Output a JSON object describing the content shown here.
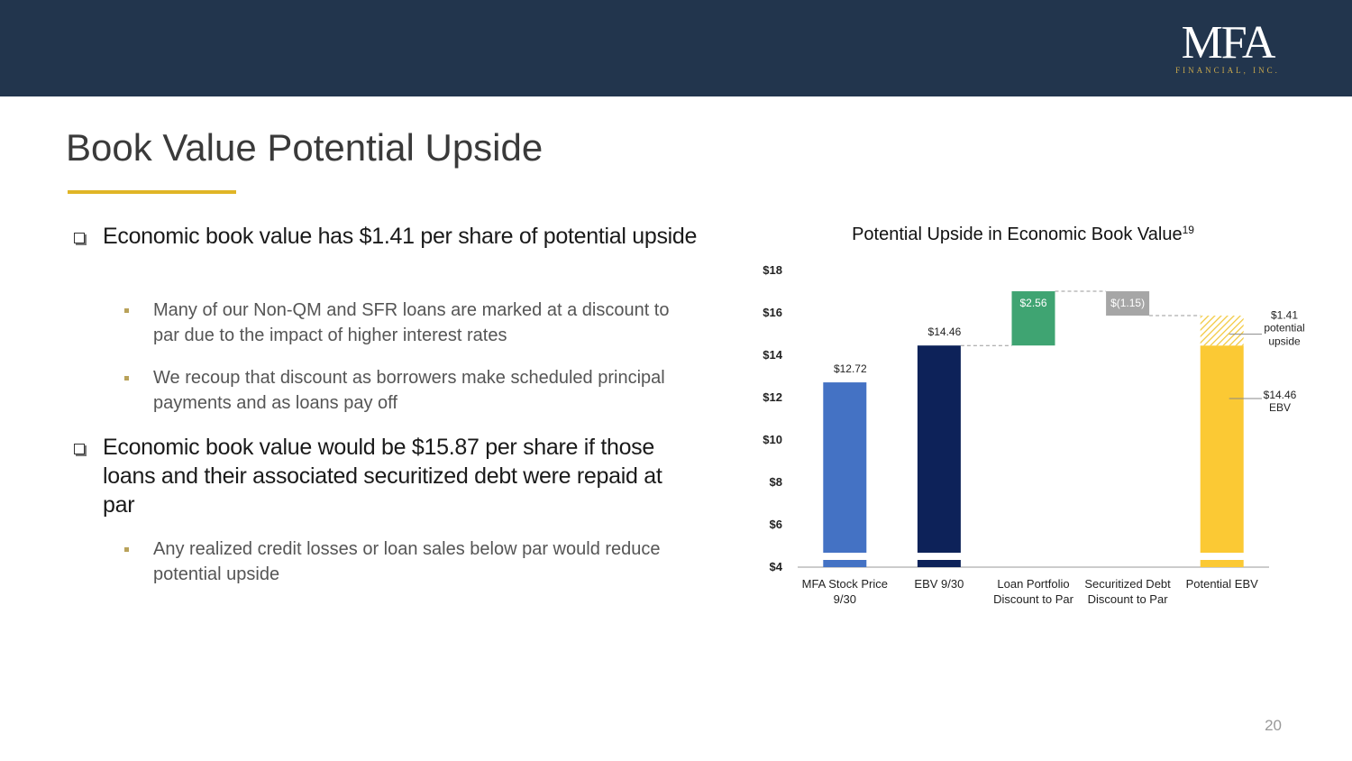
{
  "header": {
    "logo": "MFA",
    "logo_sub": "FINANCIAL, INC."
  },
  "title": "Book Value Potential Upside",
  "bullets": [
    {
      "text": "Economic book value has $1.41 per share of potential upside",
      "sub": [
        "Many of our Non-QM and SFR loans are marked at a discount to par due to the impact of higher interest rates",
        "We recoup that discount as borrowers make scheduled principal payments and as loans pay off"
      ]
    },
    {
      "text": "Economic book value would be $15.87 per share if those loans and their associated securitized debt were repaid at par",
      "sub": [
        "Any realized credit losses or loan sales below par would reduce potential upside"
      ]
    }
  ],
  "chart_data": {
    "type": "waterfall",
    "title": "Potential Upside in Economic Book Value",
    "title_note": "19",
    "categories": [
      [
        "MFA Stock Price",
        "9/30"
      ],
      [
        "EBV 9/30"
      ],
      [
        "Loan Portfolio",
        "Discount to Par"
      ],
      [
        "Securitized Debt",
        "Discount to Par"
      ],
      [
        "Potential EBV"
      ]
    ],
    "measure": [
      "absolute",
      "absolute",
      "relative",
      "relative",
      "absolute"
    ],
    "values": [
      12.72,
      14.46,
      2.56,
      -1.15,
      14.46
    ],
    "value_labels": [
      "$12.72",
      "$14.46",
      "$2.56",
      "$(1.15)",
      "$14.46"
    ],
    "colors": [
      "#4472c4",
      "#0d2259",
      "#3fa472",
      "#a6a6a6",
      "#fbc934"
    ],
    "last_label_text": [
      "EBV"
    ],
    "upside": {
      "value": 1.41,
      "value_label": "$1.41",
      "text": [
        "potential",
        "upside"
      ],
      "color": "#f2c83a"
    },
    "ylim": [
      4,
      18
    ],
    "yticks": [
      {
        "value": 4,
        "label": "$4"
      },
      {
        "value": 6,
        "label": "$6"
      },
      {
        "value": 8,
        "label": "$8"
      },
      {
        "value": 10,
        "label": "$10"
      },
      {
        "value": 12,
        "label": "$12"
      },
      {
        "value": 14,
        "label": "$14"
      },
      {
        "value": 16,
        "label": "$16"
      },
      {
        "value": 18,
        "label": "$18"
      }
    ]
  },
  "page_number": "20"
}
